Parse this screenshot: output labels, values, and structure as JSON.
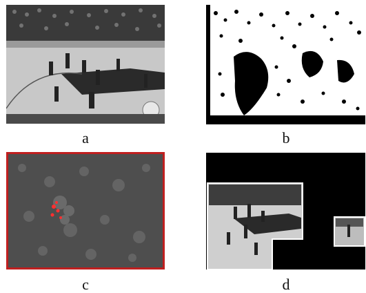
{
  "panels": [
    {
      "id": "a",
      "label": "a"
    },
    {
      "id": "b",
      "label": "b"
    },
    {
      "id": "c",
      "label": "c"
    },
    {
      "id": "d",
      "label": "d"
    }
  ],
  "colors": {
    "frame_red": "#c01f1f",
    "highlight_red": "#ff3030"
  }
}
